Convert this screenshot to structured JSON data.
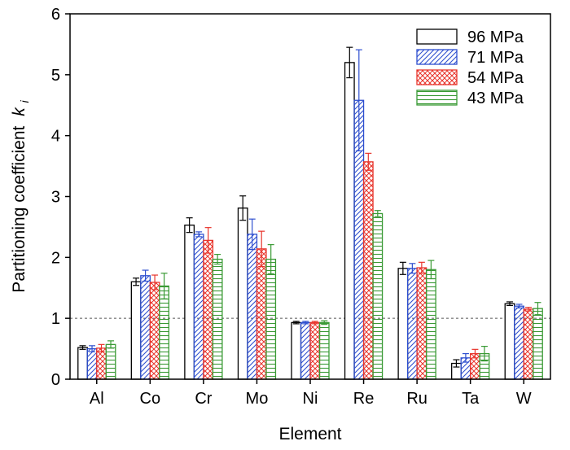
{
  "chart_data": {
    "type": "bar",
    "title": "",
    "xlabel": "Element",
    "ylabel": "Partitioning coefficient",
    "ylabel_italic_symbol": "k",
    "ylabel_subscript": "i",
    "categories": [
      "Al",
      "Co",
      "Cr",
      "Mo",
      "Ni",
      "Re",
      "Ru",
      "Ta",
      "W"
    ],
    "ylim": [
      0,
      6
    ],
    "yticks": [
      "0",
      "1",
      "2",
      "3",
      "4",
      "5",
      "6"
    ],
    "reference_line": 1,
    "legend_position": "top-right",
    "series": [
      {
        "name": "96 MPa",
        "pattern": "none",
        "color": "#000000",
        "values": [
          0.52,
          1.6,
          2.53,
          2.81,
          0.93,
          5.2,
          1.82,
          0.26,
          1.24
        ],
        "errors": [
          0.03,
          0.06,
          0.12,
          0.2,
          0.02,
          0.25,
          0.1,
          0.06,
          0.03
        ]
      },
      {
        "name": "71 MPa",
        "pattern": "diagonal",
        "color": "#2e4fcf",
        "values": [
          0.5,
          1.7,
          2.38,
          2.38,
          0.93,
          4.58,
          1.82,
          0.35,
          1.2
        ],
        "errors": [
          0.05,
          0.09,
          0.04,
          0.25,
          0.02,
          0.83,
          0.08,
          0.07,
          0.03
        ]
      },
      {
        "name": "54 MPa",
        "pattern": "crosshatch",
        "color": "#e8352c",
        "values": [
          0.51,
          1.59,
          2.28,
          2.14,
          0.93,
          3.57,
          1.83,
          0.42,
          1.15
        ],
        "errors": [
          0.06,
          0.12,
          0.21,
          0.29,
          0.02,
          0.14,
          0.09,
          0.07,
          0.03
        ]
      },
      {
        "name": "43 MPa",
        "pattern": "horizontal",
        "color": "#3a9a35",
        "values": [
          0.57,
          1.53,
          1.97,
          1.97,
          0.93,
          2.72,
          1.8,
          0.42,
          1.16
        ],
        "errors": [
          0.06,
          0.21,
          0.08,
          0.24,
          0.03,
          0.05,
          0.15,
          0.12,
          0.1
        ]
      }
    ]
  }
}
